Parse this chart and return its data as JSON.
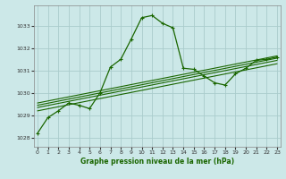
{
  "xlabel": "Graphe pression niveau de la mer (hPa)",
  "background_color": "#cce8e8",
  "grid_color": "#aacccc",
  "line_color": "#1a6600",
  "x_ticks": [
    0,
    1,
    2,
    3,
    4,
    5,
    6,
    7,
    8,
    9,
    10,
    11,
    12,
    13,
    14,
    15,
    16,
    17,
    18,
    19,
    20,
    21,
    22,
    23
  ],
  "y_ticks": [
    1028,
    1029,
    1030,
    1031,
    1032,
    1033
  ],
  "ylim": [
    1027.6,
    1033.9
  ],
  "xlim": [
    -0.3,
    23.3
  ],
  "series1": [
    [
      0,
      1028.2
    ],
    [
      1,
      1028.9
    ],
    [
      2,
      1029.2
    ],
    [
      3,
      1029.55
    ],
    [
      4,
      1029.45
    ],
    [
      5,
      1029.3
    ],
    [
      6,
      1030.0
    ],
    [
      7,
      1031.15
    ],
    [
      8,
      1031.5
    ],
    [
      9,
      1032.4
    ],
    [
      10,
      1033.35
    ],
    [
      11,
      1033.45
    ],
    [
      12,
      1033.1
    ],
    [
      13,
      1032.9
    ],
    [
      14,
      1031.1
    ],
    [
      15,
      1031.05
    ],
    [
      16,
      1030.75
    ],
    [
      17,
      1030.45
    ],
    [
      18,
      1030.35
    ],
    [
      19,
      1030.85
    ],
    [
      20,
      1031.1
    ],
    [
      21,
      1031.45
    ],
    [
      22,
      1031.5
    ],
    [
      23,
      1031.6
    ]
  ],
  "parallel_lines": [
    [
      [
        0,
        1029.55
      ],
      [
        23,
        1031.65
      ]
    ],
    [
      [
        0,
        1029.45
      ],
      [
        23,
        1031.55
      ]
    ],
    [
      [
        0,
        1029.35
      ],
      [
        23,
        1031.45
      ]
    ],
    [
      [
        0,
        1029.2
      ],
      [
        23,
        1031.3
      ]
    ]
  ]
}
